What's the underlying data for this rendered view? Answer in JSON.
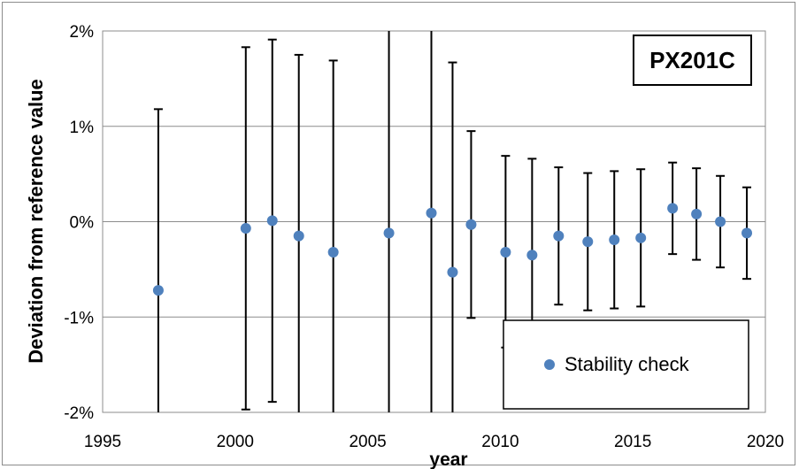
{
  "chart_data": {
    "type": "scatter",
    "title": "",
    "xlabel": "year",
    "ylabel": "Deviation from reference value",
    "annotation": "PX201C",
    "xlim": [
      1995,
      2020
    ],
    "ylim": [
      -2,
      2
    ],
    "x_ticks": [
      "1995",
      "2000",
      "2005",
      "2010",
      "2015",
      "2020"
    ],
    "y_ticks": [
      "-2%",
      "-1%",
      "0%",
      "1%",
      "2%"
    ],
    "grid": "horizontal",
    "legend_position": "bottom-right",
    "point_color": "#4f81bd",
    "series": [
      {
        "name": "Stability check",
        "points": [
          {
            "x": 1997.1,
            "y": -0.72,
            "low": -2.62,
            "high": 1.18
          },
          {
            "x": 2000.4,
            "y": -0.07,
            "low": -1.97,
            "high": 1.83
          },
          {
            "x": 2001.4,
            "y": 0.01,
            "low": -1.89,
            "high": 1.91
          },
          {
            "x": 2002.4,
            "y": -0.15,
            "low": -2.05,
            "high": 1.75
          },
          {
            "x": 2003.7,
            "y": -0.32,
            "low": -2.22,
            "high": 1.69
          },
          {
            "x": 2005.8,
            "y": -0.12,
            "low": -2.62,
            "high": 2.38
          },
          {
            "x": 2007.4,
            "y": 0.09,
            "low": -2.41,
            "high": 2.59
          },
          {
            "x": 2008.2,
            "y": -0.53,
            "low": -2.73,
            "high": 1.67
          },
          {
            "x": 2008.9,
            "y": -0.03,
            "low": -1.01,
            "high": 0.95
          },
          {
            "x": 2010.2,
            "y": -0.32,
            "low": -1.32,
            "high": 0.69
          },
          {
            "x": 2011.2,
            "y": -0.35,
            "low": -1.37,
            "high": 0.66
          },
          {
            "x": 2012.2,
            "y": -0.15,
            "low": -0.87,
            "high": 0.57
          },
          {
            "x": 2013.3,
            "y": -0.21,
            "low": -0.93,
            "high": 0.51
          },
          {
            "x": 2014.3,
            "y": -0.19,
            "low": -0.91,
            "high": 0.53
          },
          {
            "x": 2015.3,
            "y": -0.17,
            "low": -0.89,
            "high": 0.55
          },
          {
            "x": 2016.5,
            "y": 0.14,
            "low": -0.34,
            "high": 0.62
          },
          {
            "x": 2017.4,
            "y": 0.08,
            "low": -0.4,
            "high": 0.56
          },
          {
            "x": 2018.3,
            "y": 0.0,
            "low": -0.48,
            "high": 0.48
          },
          {
            "x": 2019.3,
            "y": -0.12,
            "low": -0.6,
            "high": 0.36
          }
        ]
      }
    ]
  }
}
